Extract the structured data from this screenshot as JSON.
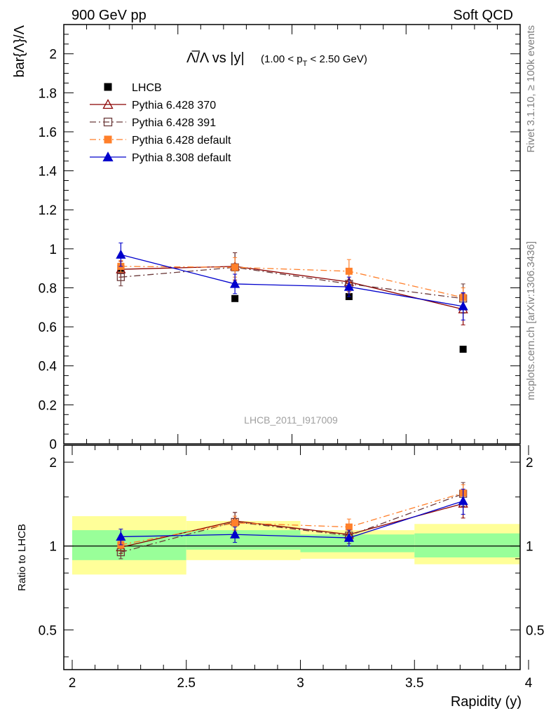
{
  "header": {
    "left": "900 GeV pp",
    "right": "Soft QCD"
  },
  "side_labels": {
    "top": "Rivet 3.1.10, ≥ 100k events",
    "bottom": "mcplots.cern.ch [arXiv:1306.3436]"
  },
  "chart_data": [
    {
      "type": "line",
      "title_main": "Λ̅/Λ vs |y|",
      "title_cut": "(1.00 < p",
      "title_cut_sub": "T",
      "title_cut_end": " < 2.50 GeV)",
      "ylabel": "bar{Λ}/Λ",
      "watermark": "LHCB_2011_I917009",
      "xlim": [
        2,
        4
      ],
      "ylim": [
        0,
        2.15
      ],
      "yticks": [
        0,
        0.2,
        0.4,
        0.6,
        0.8,
        1,
        1.2,
        1.4,
        1.6,
        1.8,
        2
      ],
      "ytick_labels": [
        "0",
        "0.2",
        "0.4",
        "0.6",
        "0.8",
        "1",
        "1.2",
        "1.4",
        "1.6",
        "1.8",
        "2"
      ],
      "legend_position": "top-left",
      "x": [
        2.25,
        2.75,
        3.25,
        3.75
      ],
      "series": [
        {
          "name": "LHCB",
          "color": "#000000",
          "marker": "square-filled",
          "line": "none",
          "values": [
            0.9,
            0.745,
            0.755,
            0.485
          ],
          "errors": [
            0.0,
            0.0,
            0.0,
            0.0
          ]
        },
        {
          "name": "Pythia 6.428 370",
          "color": "#8b0000",
          "marker": "triangle-open",
          "line": "solid",
          "values": [
            0.895,
            0.91,
            0.83,
            0.69
          ],
          "errors": [
            0.04,
            0.07,
            0.05,
            0.08
          ]
        },
        {
          "name": "Pythia 6.428 391",
          "color": "#6b3a3a",
          "marker": "square-open",
          "line": "dashdot",
          "values": [
            0.855,
            0.905,
            0.82,
            0.745
          ],
          "errors": [
            0.045,
            0.075,
            0.05,
            0.075
          ]
        },
        {
          "name": "Pythia 6.428 default",
          "color": "#ff7f2a",
          "marker": "square-filled",
          "line": "dashdot",
          "values": [
            0.91,
            0.905,
            0.885,
            0.75
          ],
          "errors": [
            0.03,
            0.05,
            0.06,
            0.05
          ]
        },
        {
          "name": "Pythia 8.308 default",
          "color": "#0000cc",
          "marker": "triangle-filled",
          "line": "solid",
          "values": [
            0.97,
            0.82,
            0.805,
            0.705
          ],
          "errors": [
            0.06,
            0.05,
            0.05,
            0.07
          ]
        }
      ]
    },
    {
      "type": "line",
      "ylabel": "Ratio to LHCB",
      "xlabel": "Rapidity (y)",
      "xlim": [
        2,
        4
      ],
      "ylim": [
        0.36,
        2.3
      ],
      "log_y": true,
      "xticks": [
        2,
        2.5,
        3,
        3.5,
        4
      ],
      "xtick_labels": [
        "2",
        "2.5",
        "3",
        "3.5",
        "4"
      ],
      "yticks": [
        0.5,
        1,
        2
      ],
      "ytick_labels": [
        "0.5",
        "1",
        "2"
      ],
      "reference_line": 1,
      "bands": [
        {
          "x_range": [
            2,
            2.5
          ],
          "inner": [
            0.89,
            1.14
          ],
          "outer": [
            0.79,
            1.28
          ]
        },
        {
          "x_range": [
            2.5,
            3
          ],
          "inner": [
            0.97,
            1.14
          ],
          "outer": [
            0.89,
            1.23
          ]
        },
        {
          "x_range": [
            3,
            3.5
          ],
          "inner": [
            0.95,
            1.1
          ],
          "outer": [
            0.9,
            1.14
          ]
        },
        {
          "x_range": [
            3.5,
            4
          ],
          "inner": [
            0.91,
            1.11
          ],
          "outer": [
            0.86,
            1.2
          ]
        }
      ],
      "x": [
        2.25,
        2.75,
        3.25,
        3.75
      ],
      "series": [
        {
          "name": "Pythia 6.428 370",
          "color": "#8b0000",
          "marker": "triangle-open",
          "line": "solid",
          "values": [
            0.99,
            1.23,
            1.1,
            1.42
          ],
          "errors": [
            0.05,
            0.09,
            0.06,
            0.16
          ]
        },
        {
          "name": "Pythia 6.428 391",
          "color": "#6b3a3a",
          "marker": "square-open",
          "line": "dashdot",
          "values": [
            0.95,
            1.22,
            1.09,
            1.54
          ],
          "errors": [
            0.05,
            0.1,
            0.07,
            0.15
          ]
        },
        {
          "name": "Pythia 6.428 default",
          "color": "#ff7f2a",
          "marker": "square-filled",
          "line": "dashdot",
          "values": [
            1.01,
            1.21,
            1.17,
            1.55
          ],
          "errors": [
            0.03,
            0.07,
            0.08,
            0.11
          ]
        },
        {
          "name": "Pythia 8.308 default",
          "color": "#0000cc",
          "marker": "triangle-filled",
          "line": "solid",
          "values": [
            1.08,
            1.1,
            1.07,
            1.45
          ],
          "errors": [
            0.07,
            0.07,
            0.07,
            0.15
          ]
        }
      ]
    }
  ]
}
